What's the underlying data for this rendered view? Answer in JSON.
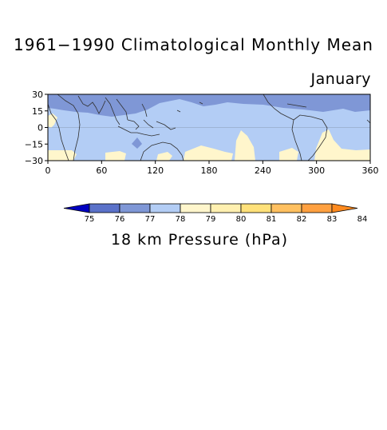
{
  "title": "1961−1990 Climatological Monthly Mean",
  "subtitle": "January",
  "map": {
    "lat_ticks": [
      "30",
      "15",
      "0",
      "−15",
      "−30"
    ],
    "lat_values": [
      30,
      15,
      0,
      -15,
      -30
    ],
    "lon_ticks": [
      "0",
      "60",
      "120",
      "180",
      "240",
      "300",
      "360"
    ],
    "lon_values": [
      0,
      60,
      120,
      180,
      240,
      300,
      360
    ],
    "lat_range": [
      -30,
      30
    ],
    "lon_range": [
      0,
      360
    ],
    "colors": {
      "c77": "#7f97d6",
      "c78": "#b3cdf5",
      "c79": "#fff6cc",
      "coast": "#303030"
    }
  },
  "colorbar": {
    "label": "18 km Pressure (hPa)",
    "tick_labels": [
      "75",
      "76",
      "77",
      "78",
      "79",
      "80",
      "81",
      "82",
      "83",
      "84"
    ],
    "colors": [
      "#0000c0",
      "#5b72c9",
      "#7f97d6",
      "#b3cdf5",
      "#fff6cc",
      "#fff0b0",
      "#ffe17a",
      "#ffc060",
      "#ffa040",
      "#ff8a1e"
    ]
  }
}
